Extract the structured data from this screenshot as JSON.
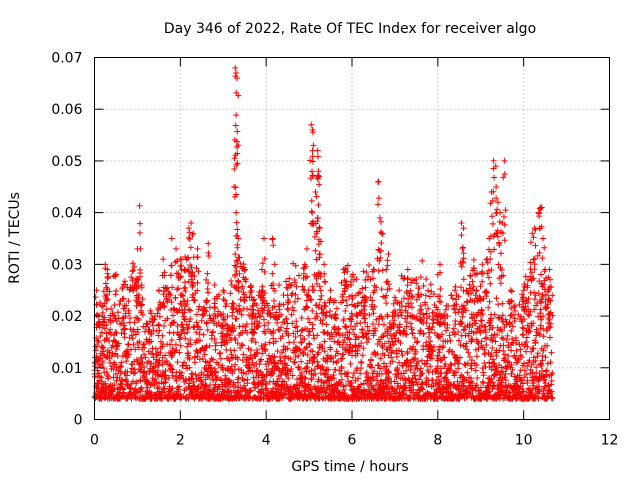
{
  "chart_data": {
    "type": "scatter",
    "title": "Day 346 of 2022, Rate Of TEC Index for receiver algo",
    "xlabel": "GPS time / hours",
    "ylabel": "ROTI / TECUs",
    "xlim": [
      0,
      12
    ],
    "ylim": [
      0,
      0.07
    ],
    "x_ticks": [
      0,
      2,
      4,
      6,
      8,
      10,
      12
    ],
    "y_ticks": [
      0,
      0.01,
      0.02,
      0.03,
      0.04,
      0.05,
      0.06,
      0.07
    ],
    "x_tick_labels": [
      "0",
      "2",
      "4",
      "6",
      "8",
      "10",
      "12"
    ],
    "y_tick_labels": [
      "0",
      "0.01",
      "0.02",
      "0.03",
      "0.04",
      "0.05",
      "0.06",
      "0.07"
    ],
    "grid": true,
    "marker": "+",
    "color": "#ff0000",
    "data_range_x": [
      0,
      10.67
    ],
    "series": [
      {
        "values_note": "",
        "points": [
          [
            0.05,
            0.025
          ],
          [
            0.1,
            0.02
          ],
          [
            0.2,
            0.022
          ],
          [
            0.25,
            0.03
          ],
          [
            0.3,
            0.029
          ],
          [
            0.5,
            0.015
          ],
          [
            0.7,
            0.022
          ],
          [
            1.05,
            0.0413
          ],
          [
            1.0,
            0.033
          ],
          [
            1.1,
            0.026
          ],
          [
            1.3,
            0.021
          ],
          [
            1.5,
            0.025
          ],
          [
            1.6,
            0.031
          ],
          [
            1.8,
            0.035
          ],
          [
            1.9,
            0.033
          ],
          [
            2.0,
            0.031
          ],
          [
            2.1,
            0.029
          ],
          [
            2.2,
            0.037
          ],
          [
            2.25,
            0.038
          ],
          [
            2.3,
            0.036
          ],
          [
            2.4,
            0.033
          ],
          [
            2.6,
            0.027
          ],
          [
            2.65,
            0.034
          ],
          [
            2.8,
            0.026
          ],
          [
            3.0,
            0.025
          ],
          [
            3.1,
            0.02
          ],
          [
            3.2,
            0.026
          ],
          [
            3.28,
            0.068
          ],
          [
            3.3,
            0.067
          ],
          [
            3.32,
            0.066
          ],
          [
            3.3,
            0.0435
          ],
          [
            3.3,
            0.04
          ],
          [
            3.35,
            0.035
          ],
          [
            3.5,
            0.029
          ],
          [
            3.7,
            0.022
          ],
          [
            3.9,
            0.029
          ],
          [
            3.95,
            0.035
          ],
          [
            4.15,
            0.035
          ],
          [
            4.2,
            0.03
          ],
          [
            4.3,
            0.026
          ],
          [
            4.5,
            0.024
          ],
          [
            4.7,
            0.019
          ],
          [
            4.9,
            0.03
          ],
          [
            4.95,
            0.033
          ],
          [
            5.05,
            0.057
          ],
          [
            5.08,
            0.056
          ],
          [
            5.1,
            0.053
          ],
          [
            5.2,
            0.052
          ],
          [
            5.22,
            0.048
          ],
          [
            5.15,
            0.044
          ],
          [
            5.2,
            0.039
          ],
          [
            5.25,
            0.037
          ],
          [
            5.35,
            0.03
          ],
          [
            5.5,
            0.025
          ],
          [
            5.6,
            0.023
          ],
          [
            5.8,
            0.029
          ],
          [
            5.85,
            0.026
          ],
          [
            6.0,
            0.024
          ],
          [
            6.1,
            0.016
          ],
          [
            6.3,
            0.022
          ],
          [
            6.5,
            0.029
          ],
          [
            6.62,
            0.046
          ],
          [
            6.65,
            0.039
          ],
          [
            6.7,
            0.036
          ],
          [
            6.8,
            0.029
          ],
          [
            6.85,
            0.032
          ],
          [
            7.0,
            0.021
          ],
          [
            7.1,
            0.025
          ],
          [
            7.3,
            0.029
          ],
          [
            7.4,
            0.027
          ],
          [
            7.6,
            0.022
          ],
          [
            7.8,
            0.02
          ],
          [
            8.0,
            0.028
          ],
          [
            8.05,
            0.03
          ],
          [
            8.2,
            0.022
          ],
          [
            8.4,
            0.025
          ],
          [
            8.55,
            0.038
          ],
          [
            8.6,
            0.037
          ],
          [
            8.8,
            0.023
          ],
          [
            8.9,
            0.025
          ],
          [
            9.0,
            0.023
          ],
          [
            9.15,
            0.031
          ],
          [
            9.2,
            0.035
          ],
          [
            9.25,
            0.044
          ],
          [
            9.3,
            0.05
          ],
          [
            9.35,
            0.049
          ],
          [
            9.4,
            0.042
          ],
          [
            9.45,
            0.04
          ],
          [
            9.55,
            0.05
          ],
          [
            9.5,
            0.038
          ],
          [
            9.7,
            0.025
          ],
          [
            9.8,
            0.022
          ],
          [
            10.0,
            0.025
          ],
          [
            10.1,
            0.027
          ],
          [
            10.2,
            0.036
          ],
          [
            10.25,
            0.037
          ],
          [
            10.35,
            0.04
          ],
          [
            10.4,
            0.041
          ],
          [
            10.45,
            0.035
          ],
          [
            10.5,
            0.029
          ],
          [
            10.6,
            0.029
          ]
        ]
      }
    ]
  }
}
